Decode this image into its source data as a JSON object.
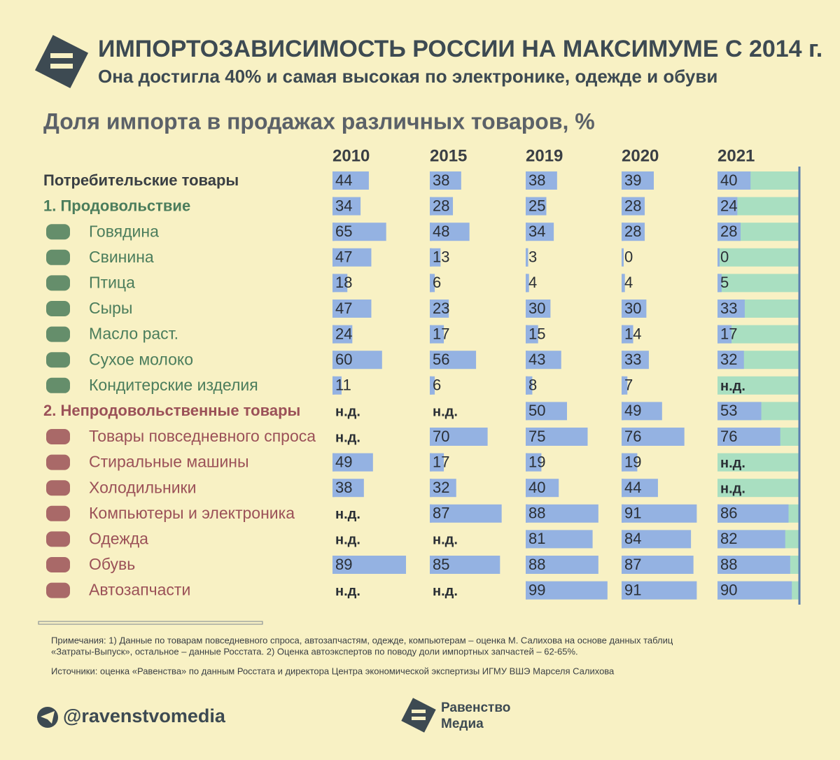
{
  "header": {
    "title": "ИМПОРТОЗАВИСИМОСТЬ РОССИИ НА МАКСИМУМЕ С 2014 г.",
    "subtitle": "Она достигла 40% и самая высокая по электронике, одежде и обуви"
  },
  "chart_title": "Доля импорта в продажах различных товаров, %",
  "table": {
    "columns": [
      "2010",
      "2015",
      "2019",
      "2020",
      "2021"
    ],
    "rows": [
      {
        "label": "Потребительские товары",
        "color": "#3a3f44",
        "bold": true,
        "values": [
          44,
          38,
          38,
          39,
          40
        ]
      },
      {
        "label": "1. Продовольствие",
        "color": "#4b7d5c",
        "bold": true,
        "values": [
          34,
          28,
          25,
          28,
          24
        ]
      },
      {
        "label": "Говядина",
        "color": "#4b7d5c",
        "bold": false,
        "values": [
          65,
          48,
          34,
          28,
          28
        ]
      },
      {
        "label": "Свинина",
        "color": "#4b7d5c",
        "bold": false,
        "values": [
          47,
          13,
          3,
          0,
          0
        ]
      },
      {
        "label": "Птица",
        "color": "#4b7d5c",
        "bold": false,
        "values": [
          18,
          6,
          4,
          4,
          5
        ]
      },
      {
        "label": "Сыры",
        "color": "#4b7d5c",
        "bold": false,
        "values": [
          47,
          23,
          30,
          30,
          33
        ]
      },
      {
        "label": "Масло раст.",
        "color": "#4b7d5c",
        "bold": false,
        "values": [
          24,
          17,
          15,
          14,
          17
        ]
      },
      {
        "label": "Сухое молоко",
        "color": "#4b7d5c",
        "bold": false,
        "values": [
          60,
          56,
          43,
          33,
          32
        ]
      },
      {
        "label": "Кондитерские изделия",
        "color": "#4b7d5c",
        "bold": false,
        "values": [
          11,
          6,
          8,
          7,
          "н.д."
        ]
      },
      {
        "label": "2. Непродовольственные товары",
        "color": "#9b5158",
        "bold": true,
        "values": [
          "н.д.",
          "н.д.",
          50,
          49,
          53
        ]
      },
      {
        "label": "Товары повседневного спроса",
        "color": "#9b5158",
        "bold": false,
        "values": [
          "н.д.",
          70,
          75,
          76,
          76
        ]
      },
      {
        "label": "Стиральные машины",
        "color": "#9b5158",
        "bold": false,
        "values": [
          49,
          17,
          19,
          19,
          "н.д."
        ]
      },
      {
        "label": "Холодильники",
        "color": "#9b5158",
        "bold": false,
        "values": [
          38,
          32,
          40,
          44,
          "н.д."
        ]
      },
      {
        "label": "Компьютеры и электроника",
        "color": "#9b5158",
        "bold": false,
        "values": [
          "н.д.",
          87,
          88,
          91,
          86
        ]
      },
      {
        "label": "Одежда",
        "color": "#9b5158",
        "bold": false,
        "values": [
          "н.д.",
          "н.д.",
          81,
          84,
          82
        ]
      },
      {
        "label": "Обувь",
        "color": "#9b5158",
        "bold": false,
        "values": [
          89,
          85,
          88,
          87,
          88
        ]
      },
      {
        "label": "Автозапчасти",
        "color": "#9b5158",
        "bold": false,
        "values": [
          "н.д.",
          "н.д.",
          99,
          91,
          90
        ]
      }
    ]
  },
  "notes": [
    "Примечания: 1) Данные по товарам повседневного спроса, автозапчастям, одежде, компьютерам – оценка М. Салихова на основе данных таблиц",
    "«Затраты-Выпуск», остальное – данные Росстата. 2) Оценка автоэкспертов по поводу доли импортных запчастей – 62-65%."
  ],
  "sources": "Источники: оценка «Равенства» по данным Росстата и директора Центра экономической экспертизы ИГМУ ВШЭ Марселя Салихова",
  "footer": {
    "handle": "@ravenstvomedia",
    "brand": [
      "Равенство",
      "Медиа"
    ]
  }
}
